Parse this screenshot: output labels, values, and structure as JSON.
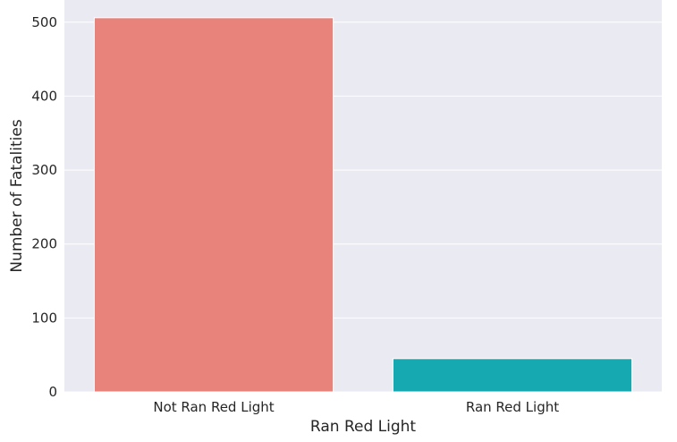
{
  "chart_data": {
    "type": "bar",
    "title": "",
    "xlabel": "Ran Red Light",
    "ylabel": "Number of Fatalities",
    "categories": [
      "Not Ran Red Light",
      "Ran Red Light"
    ],
    "values": [
      506,
      45
    ],
    "colors": [
      "#e8837c",
      "#17a9b1"
    ],
    "ylim": [
      0,
      530
    ],
    "yticks": [
      0,
      100,
      200,
      300,
      400,
      500
    ],
    "grid": true,
    "legend": "none",
    "background": "#eaeaf2"
  }
}
